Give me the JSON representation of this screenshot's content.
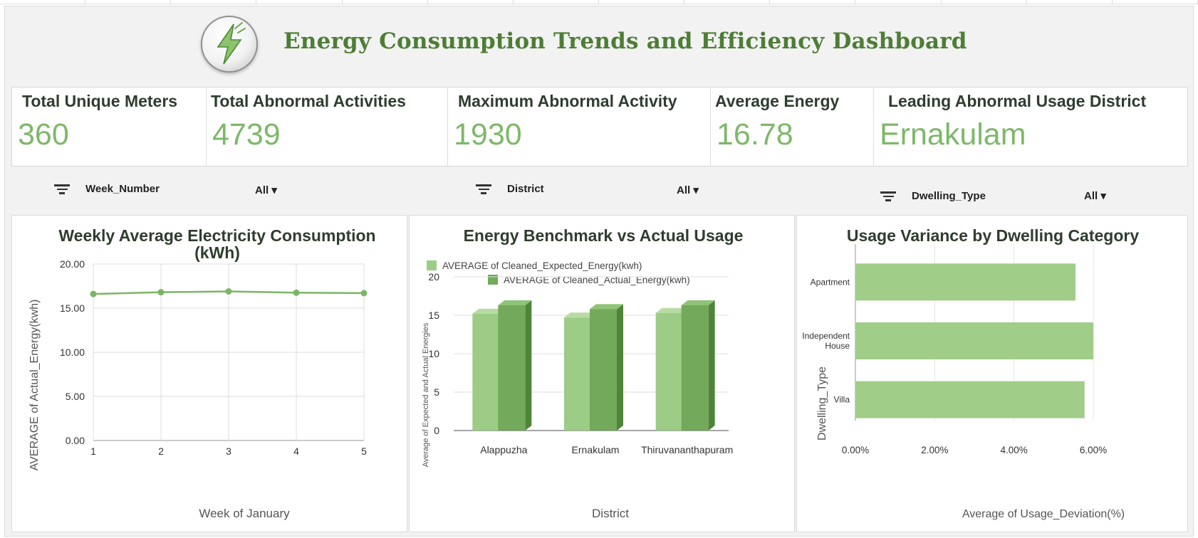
{
  "dashboard": {
    "title": "Energy Consumption Trends and Efficiency Dashboard",
    "logo_icon": "lightning-bolt-icon"
  },
  "kpis": [
    {
      "label": "Total Unique Meters",
      "value": "360"
    },
    {
      "label": "Total Abnormal Activities",
      "value": "4739"
    },
    {
      "label": "Maximum Abnormal Activity",
      "value": "1930"
    },
    {
      "label": "Average Energy",
      "value": "16.78"
    },
    {
      "label": "Leading Abnormal Usage District",
      "value": "Ernakulam"
    }
  ],
  "filters": [
    {
      "name": "Week_Number",
      "value": "All ▾"
    },
    {
      "name": "District",
      "value": "All ▾"
    },
    {
      "name": "Dwelling_Type",
      "value": "All ▾"
    }
  ],
  "colors": {
    "accent": "#4e7d36",
    "kpi_value": "#7eb86a",
    "line": "#7cb565",
    "bar_expected": "#9ccc85",
    "bar_actual": "#72a95a",
    "hbar": "#a0cd88"
  },
  "chart_data": [
    {
      "type": "line",
      "title": "Weekly Average Electricity Consumption (kWh)",
      "title_lines": [
        "Weekly Average Electricity Consumption",
        "(kWh)"
      ],
      "xlabel": "Week of January",
      "ylabel": "AVERAGE of Actual_Energy(kwh)",
      "x": [
        1,
        2,
        3,
        4,
        5
      ],
      "x_tick_labels": [
        "1",
        "2",
        "3",
        "4",
        "5"
      ],
      "y": [
        16.6,
        16.8,
        16.9,
        16.75,
        16.7
      ],
      "ylim": [
        0,
        20
      ],
      "y_ticks": [
        0,
        5,
        10,
        15,
        20
      ],
      "y_tick_labels": [
        "0.00",
        "5.00",
        "10.00",
        "15.00",
        "20.00"
      ],
      "grid": true
    },
    {
      "type": "bar",
      "title": "Energy Benchmark vs Actual Usage",
      "xlabel": "District",
      "ylabel": "Average of Expected and Actual Energies",
      "categories": [
        "Alappuzha",
        "Ernakulam",
        "Thiruvananthapuram"
      ],
      "series": [
        {
          "name": "AVERAGE of Cleaned_Expected_Energy(kwh)",
          "values": [
            15.2,
            14.7,
            15.3
          ]
        },
        {
          "name": "AVERAGE of Cleaned_Actual_Energy(kwh)",
          "values": [
            16.3,
            15.8,
            16.3
          ]
        }
      ],
      "ylim": [
        0,
        20
      ],
      "y_ticks": [
        0,
        5,
        10,
        15,
        20
      ],
      "y_tick_labels": [
        "0",
        "5",
        "10",
        "15",
        "20"
      ],
      "grid": true,
      "legend": "top-left"
    },
    {
      "type": "bar",
      "orientation": "horizontal",
      "title": "Usage Variance by Dwelling Category",
      "xlabel": "Average of Usage_Deviation(%)",
      "ylabel": "Dwelling_Type",
      "categories": [
        "Apartment",
        "Independent House",
        "Villa"
      ],
      "category_lines": [
        [
          "Apartment"
        ],
        [
          "Independent",
          "House"
        ],
        [
          "Villa"
        ]
      ],
      "values": [
        5.55,
        6.0,
        5.78
      ],
      "xlim": [
        0,
        6
      ],
      "x_ticks": [
        0,
        2,
        4,
        6
      ],
      "x_tick_labels": [
        "0.00%",
        "2.00%",
        "4.00%",
        "6.00%"
      ],
      "grid": true
    }
  ]
}
